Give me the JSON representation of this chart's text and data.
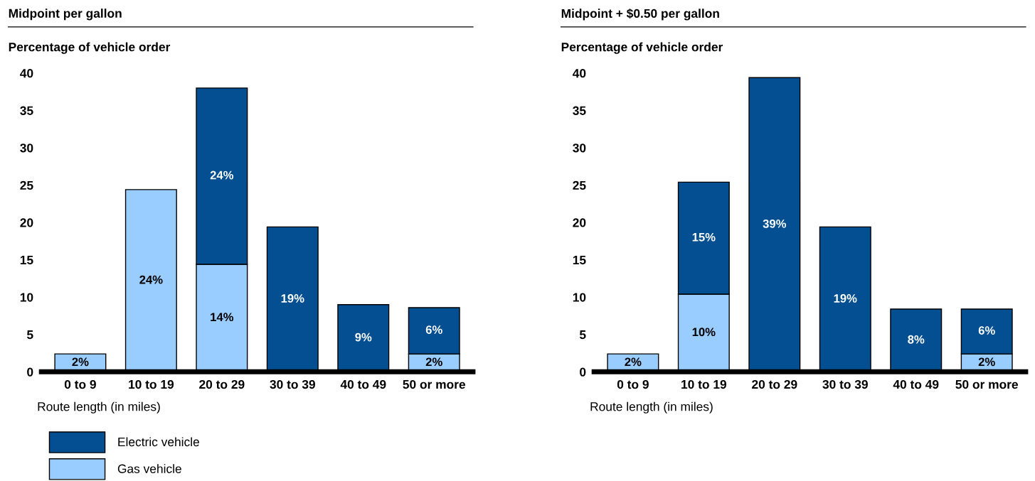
{
  "chart_data": [
    {
      "type": "bar",
      "stacked": true,
      "title": "Midpoint per gallon",
      "ylabel": "Percentage of vehicle order",
      "xlabel": "Route length (in miles)",
      "categories": [
        "0 to 9",
        "10 to 19",
        "20 to 29",
        "30 to 39",
        "40 to 49",
        "50 or more"
      ],
      "series": [
        {
          "name": "Gas vehicle",
          "color": "#99ccff",
          "values": [
            2.4,
            24.4,
            14.4,
            null,
            null,
            2.4
          ],
          "value_labels": [
            "2%",
            "24%",
            "14%",
            null,
            null,
            "2%"
          ]
        },
        {
          "name": "Electric vehicle",
          "color": "#034f91",
          "values": [
            null,
            null,
            23.6,
            19.4,
            9.0,
            6.2
          ],
          "value_labels": [
            null,
            null,
            "24%",
            "19%",
            "9%",
            "6%"
          ]
        }
      ],
      "ylim": [
        0,
        40
      ],
      "yticks": [
        0,
        5,
        10,
        15,
        20,
        25,
        30,
        35,
        40
      ],
      "grid": false,
      "legend": "bottom left"
    },
    {
      "type": "bar",
      "stacked": true,
      "title": "Midpoint + $0.50 per gallon",
      "ylabel": "Percentage of vehicle order",
      "xlabel": "Route length (in miles)",
      "categories": [
        "0 to 9",
        "10 to 19",
        "20 to 29",
        "30 to 39",
        "40 to 49",
        "50 or more"
      ],
      "series": [
        {
          "color": "#99ccff",
          "values": [
            2.4,
            10.4,
            null,
            null,
            null,
            2.4
          ],
          "value_labels": [
            "2%",
            "10%",
            null,
            null,
            null,
            "2%"
          ]
        },
        {
          "color": "#034f91",
          "values": [
            null,
            15.0,
            39.4,
            19.4,
            8.4,
            6.0
          ],
          "value_labels": [
            null,
            "15%",
            "39%",
            "19%",
            "8%",
            "6%"
          ]
        }
      ],
      "ylim": [
        0,
        40
      ],
      "yticks": [
        0,
        5,
        10,
        15,
        20,
        25,
        30,
        35,
        40
      ],
      "grid": false,
      "legend": false
    }
  ]
}
